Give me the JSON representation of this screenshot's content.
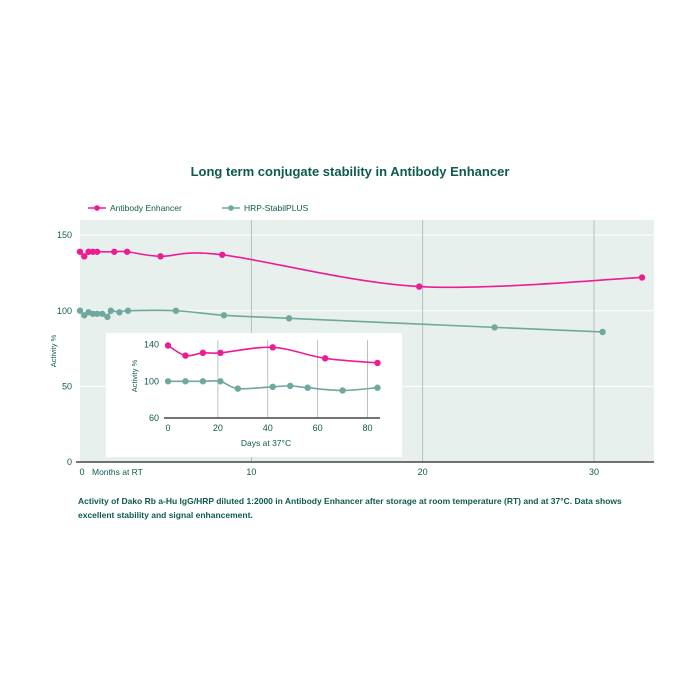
{
  "title": "Long term conjugate stability in Antibody Enhancer",
  "caption": "Activity of Dako Rb a-Hu IgG/HRP diluted 1:2000 in Antibody Enhancer after storage at room temperature (RT) and at 37°C. Data shows excellent stability and signal enhancement.",
  "colors": {
    "enhancer": "#ee1c93",
    "stabilplus": "#6fa89c",
    "text": "#0e5a4e",
    "plot_bg": "#e8f0ee",
    "grid": "#aab4b2"
  },
  "chart_data": [
    {
      "type": "line",
      "xlabel": "Months at RT",
      "ylabel": "Activity %",
      "xlim": [
        0,
        33.5
      ],
      "ylim": [
        0,
        160
      ],
      "xticks": [
        0,
        10,
        20,
        30
      ],
      "yticks": [
        0,
        50,
        100,
        150
      ],
      "grid": "vertical at 10, 20, 30",
      "legend": "top-left",
      "series": [
        {
          "name": "Antibody Enhancer",
          "x": [
            0,
            0.25,
            0.5,
            0.75,
            1.0,
            2.0,
            2.75,
            4.7,
            8.3,
            19.8,
            32.8
          ],
          "y": [
            139,
            136,
            139,
            139,
            139,
            139,
            139,
            136,
            137,
            116,
            122
          ]
        },
        {
          "name": "HRP-StabilPLUS",
          "x": [
            0,
            0.25,
            0.5,
            0.75,
            1.0,
            1.3,
            1.6,
            1.8,
            2.3,
            2.8,
            5.6,
            8.4,
            12.2,
            24.2,
            30.5
          ],
          "y": [
            100,
            97,
            99,
            98,
            98,
            98,
            96,
            100,
            99,
            100,
            100,
            97,
            95,
            89,
            86
          ]
        }
      ]
    },
    {
      "type": "line",
      "xlabel": "Days at 37°C",
      "ylabel": "Activity %",
      "xlim": [
        0,
        85
      ],
      "ylim": [
        60,
        145
      ],
      "xticks": [
        0,
        20,
        40,
        60,
        80
      ],
      "yticks": [
        60,
        100,
        140
      ],
      "grid": "vertical at 20, 40, 60, 80",
      "series": [
        {
          "name": "Antibody Enhancer",
          "x": [
            0,
            7,
            14,
            21,
            42,
            63,
            84
          ],
          "y": [
            139,
            128,
            131,
            131,
            137,
            125,
            120
          ]
        },
        {
          "name": "HRP-StabilPLUS",
          "x": [
            0,
            7,
            14,
            21,
            28,
            42,
            49,
            56,
            70,
            84
          ],
          "y": [
            100,
            100,
            100,
            100,
            92,
            94,
            95,
            93,
            90,
            93
          ]
        }
      ]
    }
  ]
}
